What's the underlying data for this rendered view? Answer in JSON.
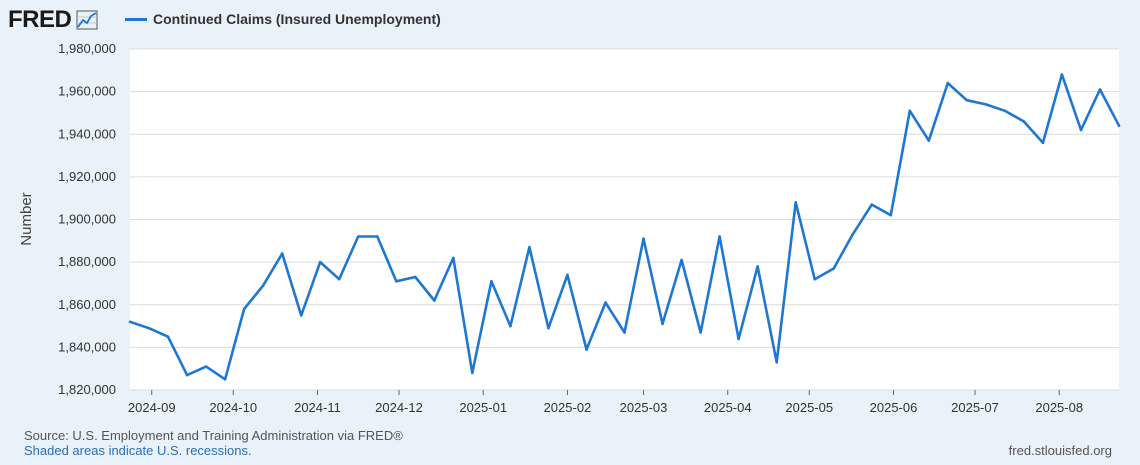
{
  "header": {
    "logo_text": "FRED",
    "logo_icon": "line-graph-icon",
    "legend_label": "Continued Claims (Insured Unemployment)",
    "legend_color": "#1f77d4"
  },
  "footer": {
    "source": "Source: U.S. Employment and Training Administration via FRED®",
    "recession_note": "Shaded areas indicate U.S. recessions.",
    "url": "fred.stlouisfed.org"
  },
  "chart_data": {
    "type": "line",
    "title": "",
    "xlabel": "",
    "ylabel": "Number",
    "ylim": [
      1820000,
      1980000
    ],
    "yticks": [
      1820000,
      1840000,
      1860000,
      1880000,
      1900000,
      1920000,
      1940000,
      1960000,
      1980000
    ],
    "ytick_labels": [
      "1,820,000",
      "1,840,000",
      "1,860,000",
      "1,880,000",
      "1,900,000",
      "1,920,000",
      "1,940,000",
      "1,960,000",
      "1,980,000"
    ],
    "xlim": [
      "2024-08-24",
      "2025-08-23"
    ],
    "xticks": [
      "2024-09-01",
      "2024-10-01",
      "2024-11-01",
      "2024-12-01",
      "2025-01-01",
      "2025-02-01",
      "2025-03-01",
      "2025-04-01",
      "2025-05-01",
      "2025-06-01",
      "2025-07-01",
      "2025-08-01"
    ],
    "xtick_labels": [
      "2024-09",
      "2024-10",
      "2024-11",
      "2024-12",
      "2025-01",
      "2025-02",
      "2025-03",
      "2025-04",
      "2025-05",
      "2025-06",
      "2025-07",
      "2025-08"
    ],
    "grid": true,
    "legend_position": "top-left",
    "series": [
      {
        "name": "Continued Claims (Insured Unemployment)",
        "color": "#1f77d4",
        "x": [
          "2024-08-24",
          "2024-08-31",
          "2024-09-07",
          "2024-09-14",
          "2024-09-21",
          "2024-09-28",
          "2024-10-05",
          "2024-10-12",
          "2024-10-19",
          "2024-10-26",
          "2024-11-02",
          "2024-11-09",
          "2024-11-16",
          "2024-11-23",
          "2024-11-30",
          "2024-12-07",
          "2024-12-14",
          "2024-12-21",
          "2024-12-28",
          "2025-01-04",
          "2025-01-11",
          "2025-01-18",
          "2025-01-25",
          "2025-02-01",
          "2025-02-08",
          "2025-02-15",
          "2025-02-22",
          "2025-03-01",
          "2025-03-08",
          "2025-03-15",
          "2025-03-22",
          "2025-03-29",
          "2025-04-05",
          "2025-04-12",
          "2025-04-19",
          "2025-04-26",
          "2025-05-03",
          "2025-05-10",
          "2025-05-17",
          "2025-05-24",
          "2025-05-31",
          "2025-06-07",
          "2025-06-14",
          "2025-06-21",
          "2025-06-28",
          "2025-07-05",
          "2025-07-12",
          "2025-07-19",
          "2025-07-26",
          "2025-08-02",
          "2025-08-09",
          "2025-08-16",
          "2025-08-23"
        ],
        "values": [
          1852000,
          1849000,
          1845000,
          1827000,
          1831000,
          1825000,
          1858000,
          1869000,
          1884000,
          1855000,
          1880000,
          1872000,
          1892000,
          1892000,
          1871000,
          1873000,
          1862000,
          1882000,
          1828000,
          1871000,
          1850000,
          1887000,
          1849000,
          1874000,
          1839000,
          1861000,
          1847000,
          1891000,
          1851000,
          1881000,
          1847000,
          1892000,
          1844000,
          1878000,
          1833000,
          1908000,
          1872000,
          1877000,
          1893000,
          1907000,
          1902000,
          1951000,
          1937000,
          1964000,
          1956000,
          1954000,
          1951000,
          1946000,
          1936000,
          1968000,
          1942000,
          1961000,
          1944000
        ]
      }
    ]
  }
}
